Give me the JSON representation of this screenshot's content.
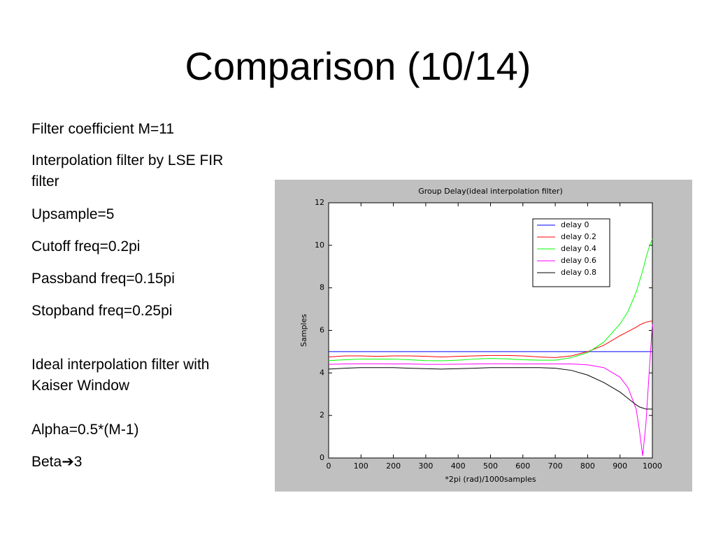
{
  "slide": {
    "title": "Comparison (10/14)",
    "items": [
      "Filter coefficient M=11",
      "Interpolation filter by LSE FIR filter",
      "Upsample=5",
      "Cutoff freq=0.2pi",
      "Passband freq=0.15pi",
      "Stopband freq=0.25pi",
      "Ideal interpolation filter with Kaiser Window",
      "Alpha=0.5*(M-1)",
      "Beta➔3"
    ]
  },
  "chart_data": {
    "type": "line",
    "title": "Group Delay(ideal interpolation filter)",
    "x_label": "*2pi (rad)/1000samples",
    "y_label": "Samples",
    "x": [
      0,
      50,
      100,
      150,
      200,
      250,
      300,
      350,
      400,
      450,
      500,
      550,
      600,
      650,
      700,
      750,
      800,
      850,
      900,
      925,
      950,
      960,
      970,
      980,
      990,
      1000
    ],
    "series": [
      {
        "name": "delay 0",
        "color": "#0000ff",
        "values": [
          5,
          5,
          5,
          5,
          5,
          5,
          5,
          5,
          5,
          5,
          5,
          5,
          5,
          5,
          5,
          5,
          5,
          5,
          5,
          5,
          5,
          5,
          5,
          5,
          5,
          5
        ]
      },
      {
        "name": "delay 0.2",
        "color": "#ff0000",
        "values": [
          4.75,
          4.8,
          4.8,
          4.78,
          4.8,
          4.8,
          4.78,
          4.75,
          4.78,
          4.8,
          4.82,
          4.82,
          4.8,
          4.75,
          4.72,
          4.8,
          5.0,
          5.3,
          5.75,
          5.95,
          6.15,
          6.25,
          6.32,
          6.38,
          6.42,
          6.45
        ]
      },
      {
        "name": "delay 0.4",
        "color": "#00ff00",
        "values": [
          4.58,
          4.62,
          4.65,
          4.65,
          4.65,
          4.62,
          4.58,
          4.57,
          4.6,
          4.65,
          4.68,
          4.66,
          4.62,
          4.6,
          4.6,
          4.72,
          4.95,
          5.45,
          6.3,
          6.9,
          7.8,
          8.3,
          8.8,
          9.4,
          9.9,
          10.3
        ]
      },
      {
        "name": "delay 0.6",
        "color": "#ff00ff",
        "values": [
          4.4,
          4.42,
          4.43,
          4.43,
          4.42,
          4.42,
          4.4,
          4.4,
          4.41,
          4.42,
          4.43,
          4.43,
          4.42,
          4.42,
          4.42,
          4.42,
          4.38,
          4.25,
          3.8,
          3.3,
          2.3,
          1.3,
          0.1,
          1.6,
          4.0,
          6.3
        ]
      },
      {
        "name": "delay 0.8",
        "color": "#000000",
        "values": [
          4.18,
          4.22,
          4.25,
          4.25,
          4.25,
          4.22,
          4.2,
          4.18,
          4.2,
          4.22,
          4.25,
          4.25,
          4.25,
          4.25,
          4.22,
          4.12,
          3.9,
          3.55,
          3.1,
          2.8,
          2.5,
          2.4,
          2.35,
          2.3,
          2.3,
          2.3
        ]
      }
    ],
    "xlim": [
      0,
      1000
    ],
    "xticks": [
      0,
      100,
      200,
      300,
      400,
      500,
      600,
      700,
      800,
      900,
      1000
    ],
    "ylim": [
      0,
      12
    ],
    "yticks": [
      0,
      2,
      4,
      6,
      8,
      10,
      12
    ],
    "grid": false,
    "legend": "upper-right",
    "background": "#c0c0c0"
  }
}
